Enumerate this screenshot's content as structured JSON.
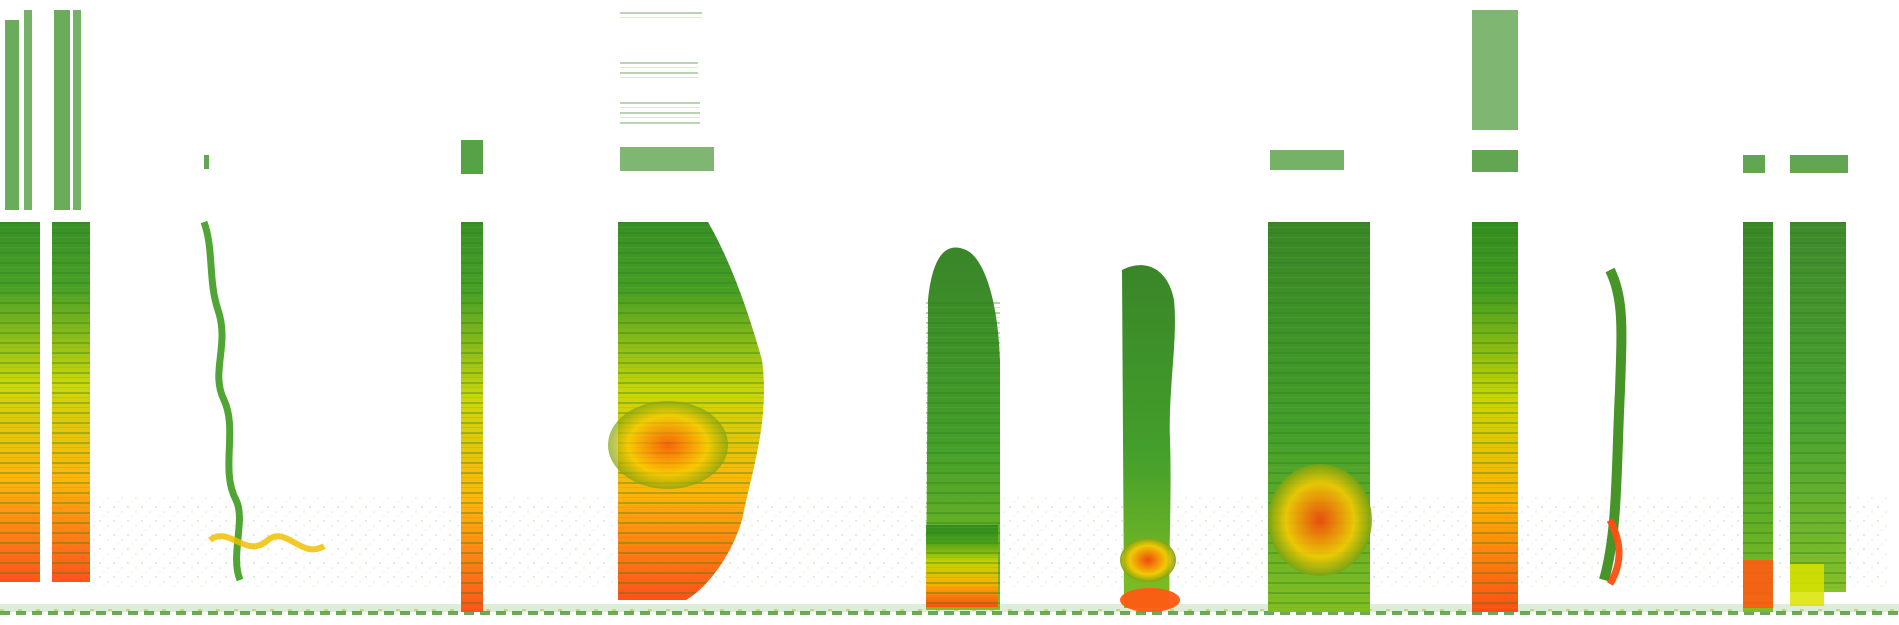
{
  "image": {
    "kind": "spectrogram",
    "background_color": "#ffffff",
    "palette": {
      "low": "#2e8b1e",
      "mid": "#c8d400",
      "high": "#ff4a10",
      "noise": "#4f9a3a"
    },
    "visible_text": []
  }
}
